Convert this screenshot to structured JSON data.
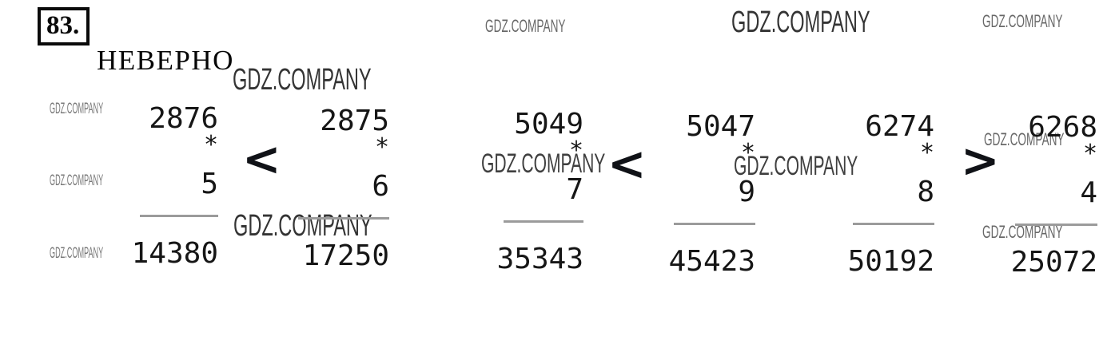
{
  "header": {
    "problem_number": "83.",
    "verdict": "НЕВЕРНО"
  },
  "watermark": {
    "text": "GDZ.COMPANY"
  },
  "problems": [
    {
      "comparison": "<",
      "left": {
        "multiplicand": "2876",
        "operator": "*",
        "multiplier": "5",
        "product": "14380"
      },
      "right": {
        "multiplicand": "2875",
        "operator": "*",
        "multiplier": "6",
        "product": "17250"
      }
    },
    {
      "comparison": "<",
      "left": {
        "multiplicand": "5049",
        "operator": "*",
        "multiplier": "7",
        "product": "35343"
      },
      "right": {
        "multiplicand": "5047",
        "operator": "*",
        "multiplier": "9",
        "product": "45423"
      }
    },
    {
      "comparison": ">",
      "left": {
        "multiplicand": "6274",
        "operator": "*",
        "multiplier": "8",
        "product": "50192"
      },
      "right": {
        "multiplicand": "6268",
        "operator": "*",
        "multiplier": "4",
        "product": "25072"
      }
    }
  ],
  "colors": {
    "ink": "#161616",
    "rule_line": "#9b9b9b",
    "watermark_dark": "#343434",
    "watermark_light": "#787878"
  }
}
